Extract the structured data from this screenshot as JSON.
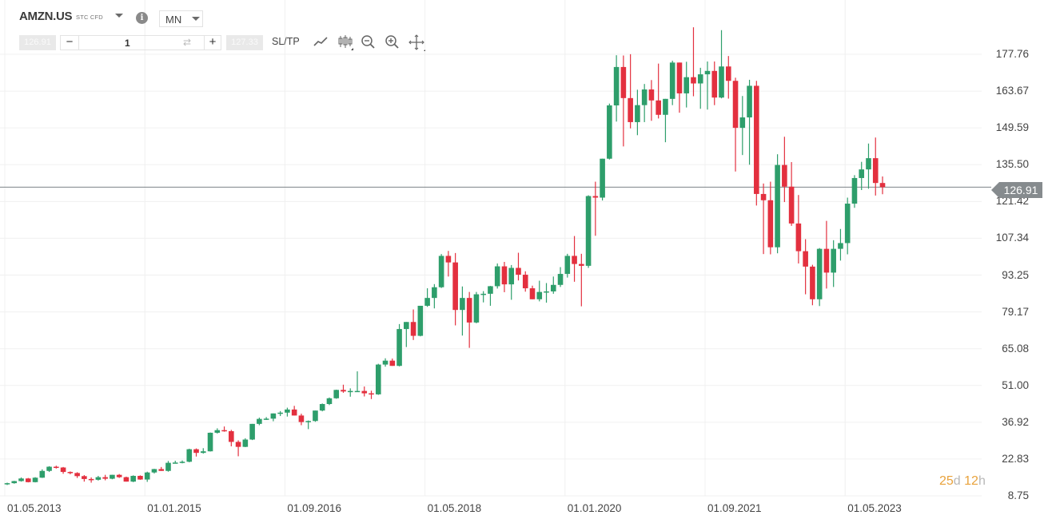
{
  "header": {
    "symbol": "AMZN.US",
    "instrument_type": "STC CFD",
    "timeframe": "MN",
    "info_icon": "info-icon",
    "sell_price": "126.91",
    "buy_price": "127.33",
    "volume": "1",
    "sltp_label": "SL/TP",
    "tools": [
      "line-chart-icon",
      "candlestick-icon",
      "zoom-out-icon",
      "zoom-in-icon",
      "crosshair-move-icon"
    ]
  },
  "colors": {
    "up": "#2e9e6b",
    "down": "#e3303f",
    "grid": "#f0f0f0",
    "price_line": "#7d8387",
    "countdown_number": "#e9a23b"
  },
  "current_price": "126.91",
  "countdown": {
    "days": "25",
    "days_unit": "d",
    "hours": "12",
    "hours_unit": "h"
  },
  "chart_data": {
    "type": "candlestick",
    "title": "AMZN.US STC CFD - Monthly",
    "xlabel": "",
    "ylabel": "",
    "ylim": [
      8.75,
      177.76
    ],
    "y_ticks": [
      "177.76",
      "163.67",
      "149.59",
      "135.50",
      "121.42",
      "107.34",
      "93.25",
      "79.17",
      "65.08",
      "51.00",
      "36.92",
      "22.83",
      "8.75"
    ],
    "x_ticks": [
      "01.05.2013",
      "01.01.2015",
      "01.09.2016",
      "01.05.2018",
      "01.01.2020",
      "01.09.2021",
      "01.05.2023"
    ],
    "grid": true,
    "current_price_line": 126.91,
    "start": "2013-05",
    "ohlc": [
      [
        13.3,
        13.8,
        12.9,
        13.6
      ],
      [
        13.6,
        14.5,
        13.4,
        14.4
      ],
      [
        14.4,
        15.8,
        14.2,
        15.4
      ],
      [
        15.4,
        15.6,
        13.9,
        14.0
      ],
      [
        14.0,
        15.9,
        13.9,
        15.7
      ],
      [
        15.7,
        18.9,
        15.6,
        18.3
      ],
      [
        18.3,
        20.1,
        17.9,
        19.9
      ],
      [
        19.9,
        20.3,
        19.2,
        19.6
      ],
      [
        19.6,
        19.8,
        17.2,
        17.9
      ],
      [
        17.9,
        18.1,
        17.0,
        17.5
      ],
      [
        17.5,
        17.8,
        15.6,
        16.3
      ],
      [
        16.3,
        16.7,
        14.2,
        15.2
      ],
      [
        15.2,
        15.8,
        13.8,
        14.9
      ],
      [
        14.9,
        16.4,
        14.6,
        15.9
      ],
      [
        15.9,
        16.8,
        14.7,
        15.3
      ],
      [
        15.3,
        16.8,
        15.1,
        16.8
      ],
      [
        16.8,
        17.1,
        15.6,
        15.9
      ],
      [
        15.9,
        16.1,
        14.8,
        14.2
      ],
      [
        14.2,
        16.6,
        14.0,
        16.4
      ],
      [
        16.4,
        16.6,
        14.9,
        15.0
      ],
      [
        15.0,
        18.0,
        14.1,
        17.7
      ],
      [
        17.7,
        19.1,
        17.3,
        19.0
      ],
      [
        19.0,
        19.8,
        18.7,
        18.3
      ],
      [
        18.3,
        22.1,
        18.0,
        21.4
      ],
      [
        21.4,
        22.2,
        21.2,
        21.5
      ],
      [
        21.5,
        22.3,
        21.2,
        21.8
      ],
      [
        21.8,
        26.8,
        21.6,
        26.6
      ],
      [
        26.6,
        26.9,
        23.8,
        25.2
      ],
      [
        25.2,
        27.0,
        24.9,
        25.8
      ],
      [
        25.8,
        33.0,
        25.7,
        32.9
      ],
      [
        32.9,
        34.6,
        32.6,
        33.9
      ],
      [
        33.9,
        35.3,
        33.3,
        33.5
      ],
      [
        33.5,
        34.0,
        27.7,
        29.4
      ],
      [
        29.4,
        30.0,
        23.9,
        27.5
      ],
      [
        27.5,
        30.8,
        27.4,
        30.3
      ],
      [
        30.3,
        36.3,
        30.1,
        36.3
      ],
      [
        36.3,
        38.7,
        35.8,
        38.2
      ],
      [
        38.2,
        38.9,
        37.8,
        38.3
      ],
      [
        38.3,
        40.3,
        37.3,
        40.3
      ],
      [
        40.3,
        41.2,
        39.3,
        40.6
      ],
      [
        40.6,
        42.5,
        39.1,
        41.8
      ],
      [
        41.8,
        43.2,
        40.1,
        39.5
      ],
      [
        39.5,
        40.2,
        35.8,
        37.0
      ],
      [
        37.0,
        37.6,
        34.3,
        37.4
      ],
      [
        37.4,
        41.3,
        37.1,
        41.4
      ],
      [
        41.4,
        44.1,
        41.1,
        43.9
      ],
      [
        43.9,
        46.4,
        43.5,
        46.1
      ],
      [
        46.1,
        49.4,
        45.9,
        49.3
      ],
      [
        49.3,
        51.3,
        48.2,
        48.7
      ],
      [
        48.7,
        49.9,
        46.7,
        48.9
      ],
      [
        48.9,
        56.4,
        48.6,
        48.9
      ],
      [
        48.9,
        50.6,
        46.8,
        48.0
      ],
      [
        48.0,
        49.0,
        45.8,
        47.6
      ],
      [
        47.6,
        59.3,
        47.4,
        59.0
      ],
      [
        59.0,
        61.4,
        58.2,
        60.5
      ],
      [
        60.5,
        61.3,
        58.9,
        58.5
      ],
      [
        58.5,
        74.5,
        58.3,
        72.6
      ],
      [
        72.6,
        75.1,
        65.7,
        75.3
      ],
      [
        75.3,
        80.1,
        68.4,
        70.0
      ],
      [
        70.0,
        80.4,
        69.8,
        81.5
      ],
      [
        81.5,
        88.2,
        81.1,
        84.5
      ],
      [
        84.5,
        89.8,
        80.5,
        88.6
      ],
      [
        88.6,
        101.3,
        88.3,
        100.6
      ],
      [
        100.6,
        102.5,
        92.7,
        98.1
      ],
      [
        98.1,
        101.7,
        74.0,
        79.9
      ],
      [
        79.9,
        88.9,
        70.1,
        84.5
      ],
      [
        84.5,
        86.8,
        65.4,
        75.1
      ],
      [
        75.1,
        86.8,
        74.8,
        85.9
      ],
      [
        85.9,
        87.1,
        82.8,
        86.1
      ],
      [
        86.1,
        89.1,
        81.5,
        89.0
      ],
      [
        89.0,
        97.7,
        88.1,
        96.6
      ],
      [
        96.6,
        98.3,
        86.7,
        89.7
      ],
      [
        89.7,
        97.1,
        83.8,
        96.0
      ],
      [
        96.0,
        101.8,
        91.2,
        93.4
      ],
      [
        93.4,
        94.7,
        86.9,
        88.2
      ],
      [
        88.2,
        89.2,
        85.3,
        84.0
      ],
      [
        84.0,
        91.1,
        83.2,
        86.8
      ],
      [
        86.8,
        90.2,
        82.7,
        87.0
      ],
      [
        87.0,
        92.7,
        86.1,
        89.5
      ],
      [
        89.5,
        96.3,
        88.7,
        93.7
      ],
      [
        93.7,
        101.4,
        92.3,
        100.6
      ],
      [
        100.6,
        108.2,
        90.7,
        97.5
      ],
      [
        97.5,
        101.4,
        81.3,
        96.8
      ],
      [
        96.8,
        123.8,
        96.0,
        123.5
      ],
      [
        123.5,
        129.0,
        108.3,
        122.9
      ],
      [
        122.9,
        134.8,
        121.8,
        137.8
      ],
      [
        137.8,
        158.9,
        137.5,
        158.2
      ],
      [
        158.2,
        177.4,
        152.0,
        172.9
      ],
      [
        172.9,
        177.3,
        142.5,
        161.0
      ],
      [
        161.0,
        177.8,
        149.4,
        151.8
      ],
      [
        151.8,
        164.2,
        146.8,
        158.3
      ],
      [
        158.3,
        166.4,
        151.8,
        164.3
      ],
      [
        164.3,
        167.9,
        152.3,
        160.1
      ],
      [
        160.1,
        174.2,
        153.2,
        154.6
      ],
      [
        154.6,
        160.7,
        144.1,
        160.7
      ],
      [
        160.7,
        175.3,
        158.3,
        174.6
      ],
      [
        174.6,
        173.7,
        155.4,
        162.8
      ],
      [
        162.8,
        174.9,
        157.4,
        169.0
      ],
      [
        169.0,
        188.1,
        161.7,
        166.6
      ],
      [
        166.6,
        172.6,
        156.9,
        170.1
      ],
      [
        170.1,
        175.0,
        156.6,
        171.4
      ],
      [
        171.4,
        175.0,
        158.3,
        161.2
      ],
      [
        161.2,
        187.0,
        160.9,
        173.1
      ],
      [
        173.1,
        177.1,
        160.8,
        167.6
      ],
      [
        167.6,
        168.8,
        132.9,
        149.6
      ],
      [
        149.6,
        161.8,
        139.2,
        153.6
      ],
      [
        153.6,
        168.0,
        135.5,
        165.7
      ],
      [
        165.7,
        167.6,
        119.9,
        124.3
      ],
      [
        124.3,
        128.3,
        101.3,
        121.9
      ],
      [
        121.9,
        129.0,
        101.2,
        103.9
      ],
      [
        103.9,
        139.5,
        101.6,
        135.4
      ],
      [
        135.4,
        146.2,
        121.2,
        127.1
      ],
      [
        127.1,
        136.5,
        112.1,
        113.0
      ],
      [
        113.0,
        123.9,
        97.7,
        102.4
      ],
      [
        102.4,
        107.0,
        85.9,
        96.5
      ],
      [
        96.5,
        97.2,
        81.7,
        84.0
      ],
      [
        84.0,
        103.6,
        81.4,
        103.3
      ],
      [
        103.3,
        114.0,
        88.1,
        94.2
      ],
      [
        94.2,
        106.6,
        88.7,
        103.3
      ],
      [
        103.3,
        110.9,
        98.8,
        105.5
      ],
      [
        105.5,
        122.9,
        101.2,
        120.6
      ],
      [
        120.6,
        131.5,
        119.0,
        130.4
      ],
      [
        130.4,
        136.6,
        125.8,
        133.7
      ],
      [
        133.7,
        143.6,
        126.3,
        138.0
      ],
      [
        138.0,
        145.9,
        123.7,
        128.5
      ],
      [
        128.5,
        131.0,
        124.2,
        126.9
      ]
    ]
  }
}
